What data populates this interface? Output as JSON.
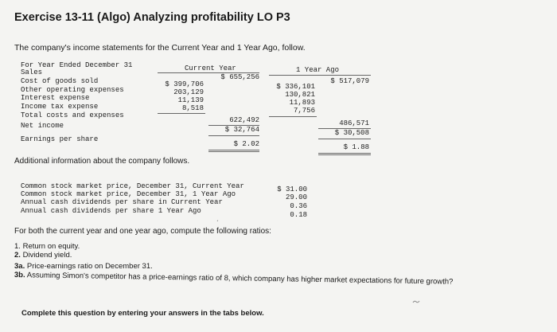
{
  "title": "Exercise 13-11 (Algo) Analyzing profitability LO P3",
  "intro": "The company's income statements for the Current Year and 1 Year Ago, follow.",
  "statement": {
    "header_label": "For Year Ended December 31",
    "col_current": "Current Year",
    "col_prior": "1 Year Ago",
    "rows": {
      "sales": {
        "label": "Sales",
        "cy": "$ 655,256",
        "py": "$ 517,079"
      },
      "cogs": {
        "label": "Cost of goods sold",
        "cy": "$ 399,706",
        "py": "$ 336,101"
      },
      "opex": {
        "label": "Other operating expenses",
        "cy": "203,129",
        "py": "130,821"
      },
      "interest": {
        "label": "Interest expense",
        "cy": "11,139",
        "py": "11,893"
      },
      "tax": {
        "label": "Income tax expense",
        "cy": "8,518",
        "py": "7,756"
      },
      "total": {
        "label": "Total costs and expenses",
        "cy": "622,492",
        "py": "486,571"
      },
      "net_income": {
        "label": "Net income",
        "cy": "$ 32,764",
        "py": "$ 30,508"
      },
      "eps": {
        "label": "Earnings per share",
        "cy": "$ 2.02",
        "py": "$ 1.88"
      }
    }
  },
  "additional_heading": "Additional information about the company follows.",
  "additional": [
    {
      "label": "Common stock market price, December 31, Current Year",
      "value": "$ 31.00"
    },
    {
      "label": "Common stock market price, December 31, 1 Year Ago",
      "value": "29.00"
    },
    {
      "label": "Annual cash dividends per share in Current Year",
      "value": "0.36"
    },
    {
      "label": "Annual cash dividends per share 1 Year Ago",
      "value": "0.18"
    }
  ],
  "instruction": "For both the current year and one year ago, compute the following ratios:",
  "ratios": [
    {
      "num": "1.",
      "text": "Return on equity."
    },
    {
      "num": "2.",
      "text": "Dividend yield."
    },
    {
      "num": "3a.",
      "text": "Price-earnings ratio on December 31."
    },
    {
      "num": "3b.",
      "text": "Assuming Simon's competitor has a price-earnings ratio of 8, which company has higher market expectations for future growth?"
    }
  ],
  "cta": "Complete this question by entering your answers in the tabs below."
}
